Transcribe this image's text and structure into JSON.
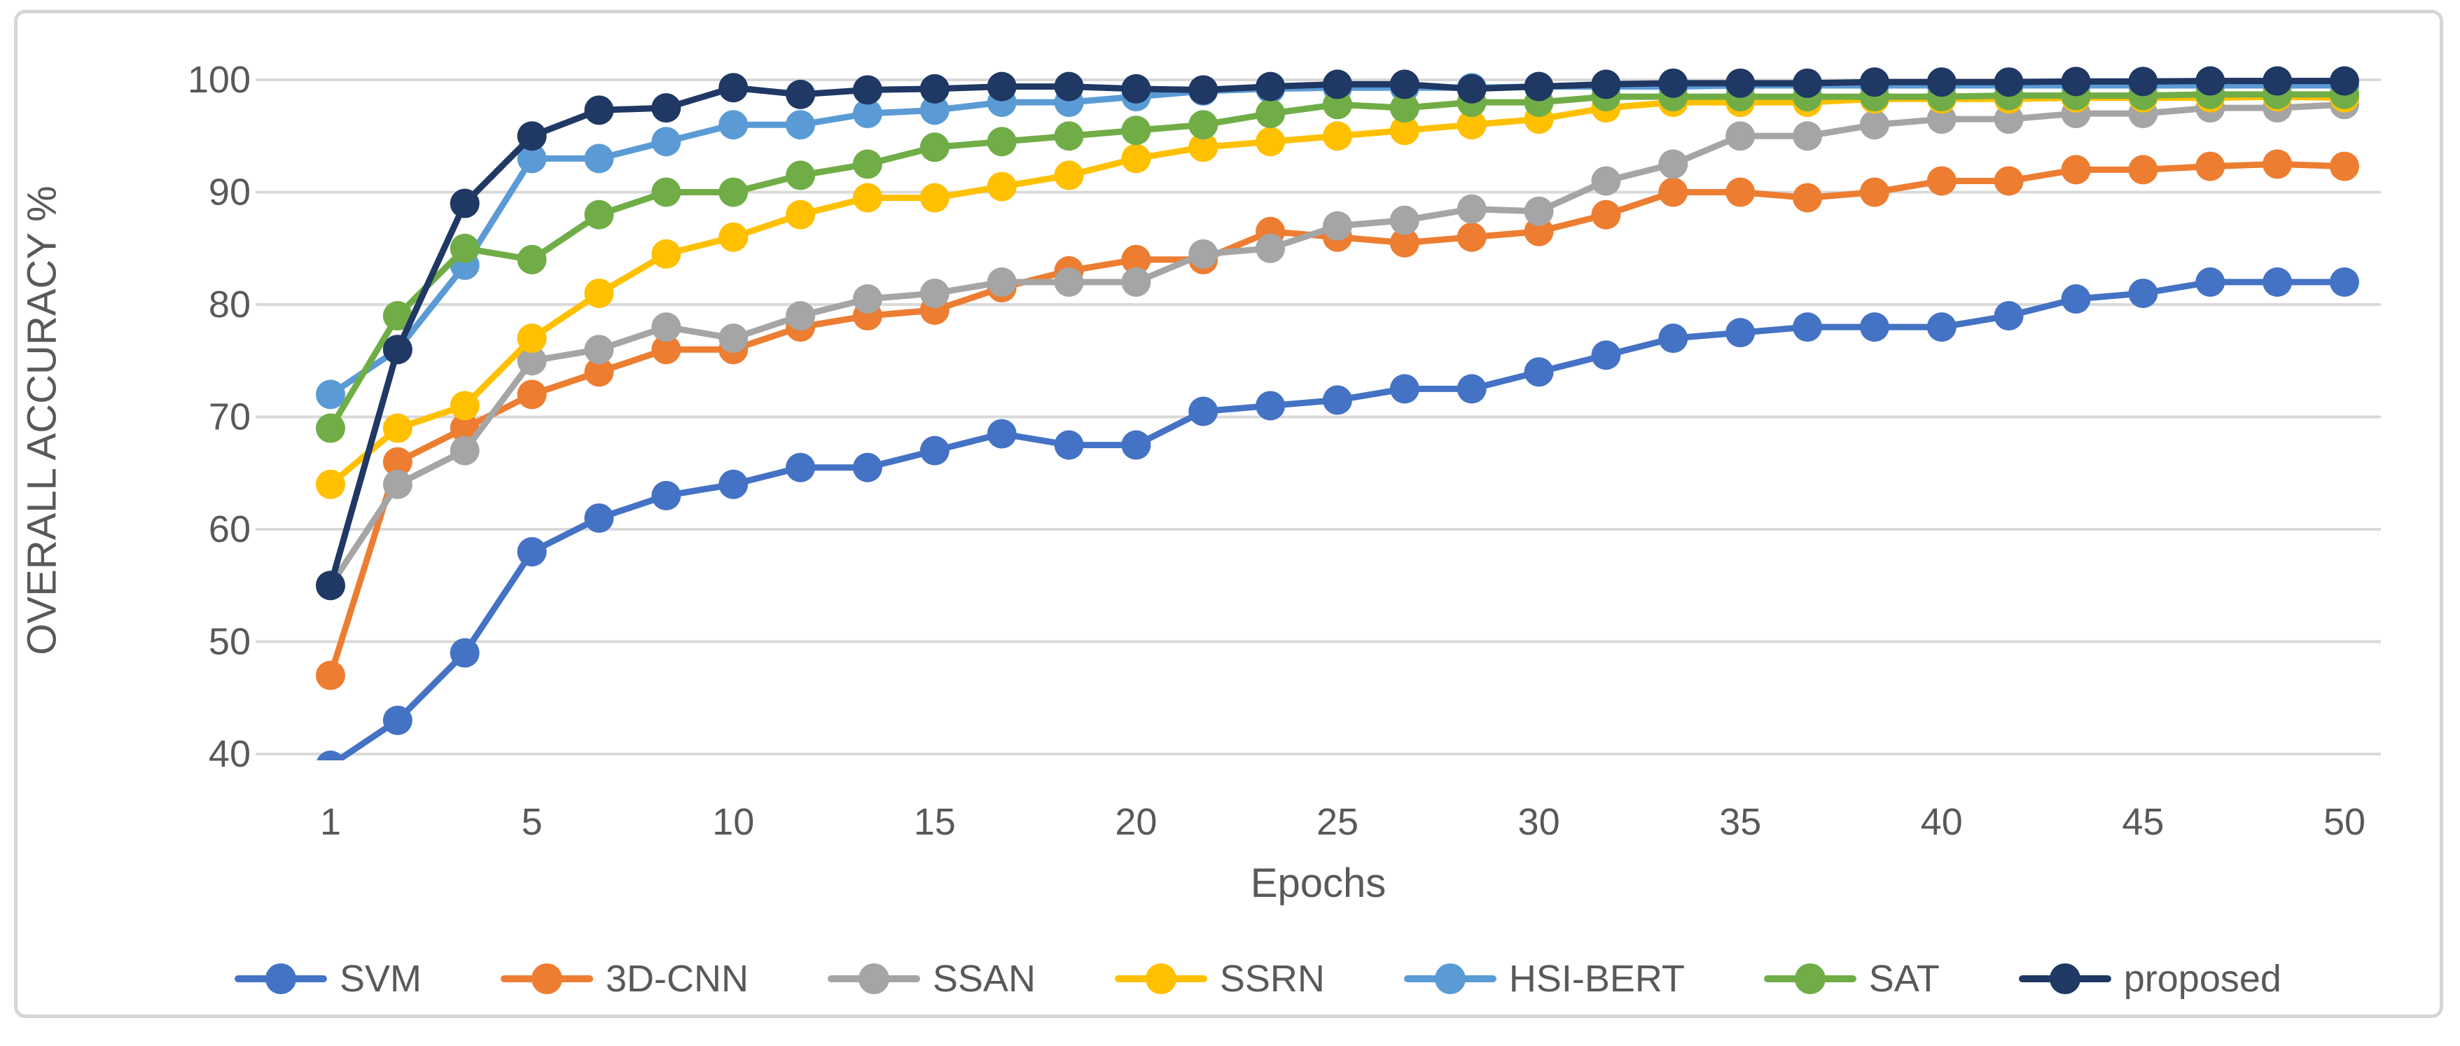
{
  "chart_data": {
    "type": "line",
    "title": "",
    "xlabel": "Epochs",
    "ylabel": "OVERALL ACCURACY %",
    "ylim": [
      40,
      100
    ],
    "y_ticks": [
      100,
      90,
      80,
      70,
      60,
      50,
      40
    ],
    "x_tick_labels": [
      "1",
      "5",
      "10",
      "15",
      "20",
      "25",
      "30",
      "35",
      "40",
      "45",
      "50"
    ],
    "x_tick_indices": [
      0,
      3,
      6,
      9,
      12,
      15,
      18,
      21,
      24,
      27,
      30
    ],
    "x": [
      1,
      2.3,
      3.7,
      5,
      6.7,
      8.3,
      10,
      11.7,
      13.3,
      15,
      16.7,
      18.3,
      20,
      21.7,
      23.3,
      25,
      26.7,
      28.3,
      30,
      31.7,
      33.3,
      35,
      36.7,
      38.3,
      40,
      41.7,
      43.3,
      45,
      46.7,
      48.3,
      50
    ],
    "grid": true,
    "markers": true,
    "legend_position": "bottom",
    "series": [
      {
        "name": "SVM",
        "color": "#4472C4",
        "values": [
          39,
          43,
          49,
          58,
          61,
          63,
          64,
          65.5,
          65.5,
          67,
          68.5,
          67.5,
          67.5,
          70.5,
          71,
          71.5,
          72.5,
          72.5,
          74,
          75.5,
          77,
          77.5,
          78,
          78,
          78,
          79,
          80.5,
          81,
          82,
          82,
          82
        ]
      },
      {
        "name": "3D-CNN",
        "color": "#ED7D31",
        "values": [
          47,
          66,
          69,
          72,
          74,
          76,
          76,
          78,
          79,
          79.5,
          81.5,
          83,
          84,
          84,
          86.5,
          86,
          85.5,
          86,
          86.5,
          88,
          90,
          90,
          89.5,
          90,
          91,
          91,
          92,
          92,
          92.3,
          92.5,
          92.3
        ]
      },
      {
        "name": "SSAN",
        "color": "#A5A5A5",
        "values": [
          55,
          64,
          67,
          75,
          76,
          78,
          77,
          79,
          80.5,
          81,
          82,
          82,
          82,
          84.5,
          85,
          87,
          87.5,
          88.5,
          88.3,
          91,
          92.5,
          95,
          95,
          96,
          96.5,
          96.5,
          97,
          97,
          97.5,
          97.5,
          97.8
        ]
      },
      {
        "name": "SSRN",
        "color": "#FFC000",
        "values": [
          64,
          69,
          71,
          77,
          81,
          84.5,
          86,
          88,
          89.5,
          89.5,
          90.5,
          91.5,
          93,
          94,
          94.5,
          95,
          95.5,
          96,
          96.5,
          97.5,
          98,
          98,
          98,
          98.3,
          98.3,
          98.3,
          98.4,
          98.4,
          98.4,
          98.5,
          98.4
        ]
      },
      {
        "name": "HSI-BERT",
        "color": "#5B9BD5",
        "values": [
          72,
          76,
          83.5,
          93,
          93,
          94.5,
          96,
          96,
          97,
          97.3,
          98,
          98,
          98.5,
          99,
          99.2,
          99.3,
          99.3,
          99.3,
          99.4,
          99.4,
          99.4,
          99.5,
          99.5,
          99.5,
          99.5,
          99.5,
          99.5,
          99.5,
          99.5,
          99.5,
          99.5
        ]
      },
      {
        "name": "SAT",
        "color": "#70AD47",
        "values": [
          69,
          79,
          85,
          84,
          88,
          90,
          90,
          91.5,
          92.5,
          94,
          94.5,
          95,
          95.5,
          96,
          97,
          97.8,
          97.5,
          98,
          98,
          98.5,
          98.5,
          98.5,
          98.5,
          98.5,
          98.5,
          98.6,
          98.6,
          98.6,
          98.7,
          98.7,
          98.7
        ]
      },
      {
        "name": "proposed",
        "color": "#1F3864",
        "values": [
          55,
          76,
          89,
          95,
          97.3,
          97.5,
          99.3,
          98.7,
          99.1,
          99.2,
          99.4,
          99.4,
          99.2,
          99.1,
          99.4,
          99.6,
          99.6,
          99.2,
          99.4,
          99.6,
          99.7,
          99.7,
          99.7,
          99.8,
          99.8,
          99.8,
          99.85,
          99.85,
          99.9,
          99.9,
          99.9
        ]
      }
    ],
    "style": {
      "gridline_color": "#D9D9D9",
      "text_color": "#595959",
      "background": "#FFFFFF",
      "border_color": "#D6D6D6"
    }
  }
}
